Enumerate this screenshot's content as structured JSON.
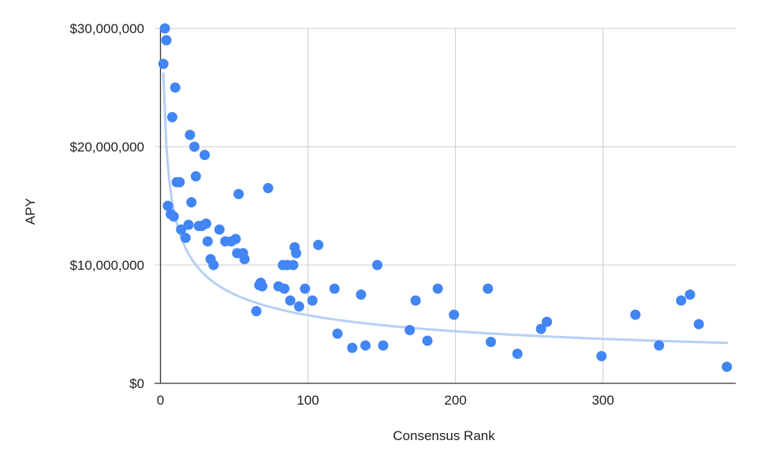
{
  "chart_data": {
    "type": "scatter",
    "title": "",
    "xlabel": "Consensus Rank",
    "ylabel": "APY",
    "xlim": [
      -4,
      390
    ],
    "ylim": [
      0,
      30000000
    ],
    "x_ticks": [
      0,
      100,
      200,
      300
    ],
    "x_tick_labels": [
      "0",
      "100",
      "200",
      "300"
    ],
    "y_ticks": [
      0,
      10000000,
      20000000,
      30000000
    ],
    "y_tick_labels": [
      "$0",
      "$10,000,000",
      "$20,000,000",
      "$30,000,000"
    ],
    "grid": true,
    "legend": "none",
    "trendline": {
      "type": "power",
      "a": 34250000,
      "b": -0.3873,
      "x_range": [
        2,
        384
      ]
    },
    "colors": {
      "points": "#4285f4",
      "trendline": "#b7cff5",
      "grid": "#cccccc",
      "axis": "#333333"
    },
    "series": [
      {
        "points": [
          [
            2,
            27000000
          ],
          [
            3,
            30000000
          ],
          [
            4,
            29000000
          ],
          [
            5,
            15000000
          ],
          [
            7,
            14300000
          ],
          [
            8,
            22500000
          ],
          [
            9,
            14100000
          ],
          [
            10,
            25000000
          ],
          [
            11,
            17000000
          ],
          [
            13,
            17000000
          ],
          [
            14,
            13000000
          ],
          [
            17,
            12300000
          ],
          [
            19,
            13400000
          ],
          [
            20,
            21000000
          ],
          [
            21,
            15300000
          ],
          [
            23,
            20000000
          ],
          [
            24,
            17500000
          ],
          [
            26,
            13300000
          ],
          [
            28,
            13300000
          ],
          [
            30,
            19300000
          ],
          [
            31,
            13500000
          ],
          [
            32,
            12000000
          ],
          [
            34,
            10500000
          ],
          [
            36,
            10000000
          ],
          [
            40,
            13000000
          ],
          [
            44,
            12000000
          ],
          [
            48,
            12000000
          ],
          [
            51,
            12200000
          ],
          [
            52,
            11000000
          ],
          [
            53,
            16000000
          ],
          [
            56,
            11000000
          ],
          [
            57,
            10500000
          ],
          [
            65,
            6100000
          ],
          [
            67,
            8300000
          ],
          [
            68,
            8500000
          ],
          [
            69,
            8200000
          ],
          [
            73,
            16500000
          ],
          [
            80,
            8200000
          ],
          [
            83,
            10000000
          ],
          [
            84,
            8000000
          ],
          [
            86,
            10000000
          ],
          [
            88,
            7000000
          ],
          [
            90,
            10000000
          ],
          [
            91,
            11500000
          ],
          [
            92,
            11000000
          ],
          [
            94,
            6500000
          ],
          [
            98,
            8000000
          ],
          [
            103,
            7000000
          ],
          [
            107,
            11700000
          ],
          [
            118,
            8000000
          ],
          [
            120,
            4200000
          ],
          [
            130,
            3000000
          ],
          [
            136,
            7500000
          ],
          [
            139,
            3200000
          ],
          [
            147,
            10000000
          ],
          [
            151,
            3200000
          ],
          [
            169,
            4500000
          ],
          [
            173,
            7000000
          ],
          [
            181,
            3600000
          ],
          [
            188,
            8000000
          ],
          [
            199,
            5800000
          ],
          [
            222,
            8000000
          ],
          [
            224,
            3500000
          ],
          [
            242,
            2500000
          ],
          [
            258,
            4600000
          ],
          [
            262,
            5200000
          ],
          [
            299,
            2300000
          ],
          [
            322,
            5800000
          ],
          [
            338,
            3200000
          ],
          [
            353,
            7000000
          ],
          [
            359,
            7500000
          ],
          [
            365,
            5000000
          ],
          [
            384,
            1400000
          ]
        ]
      }
    ]
  }
}
